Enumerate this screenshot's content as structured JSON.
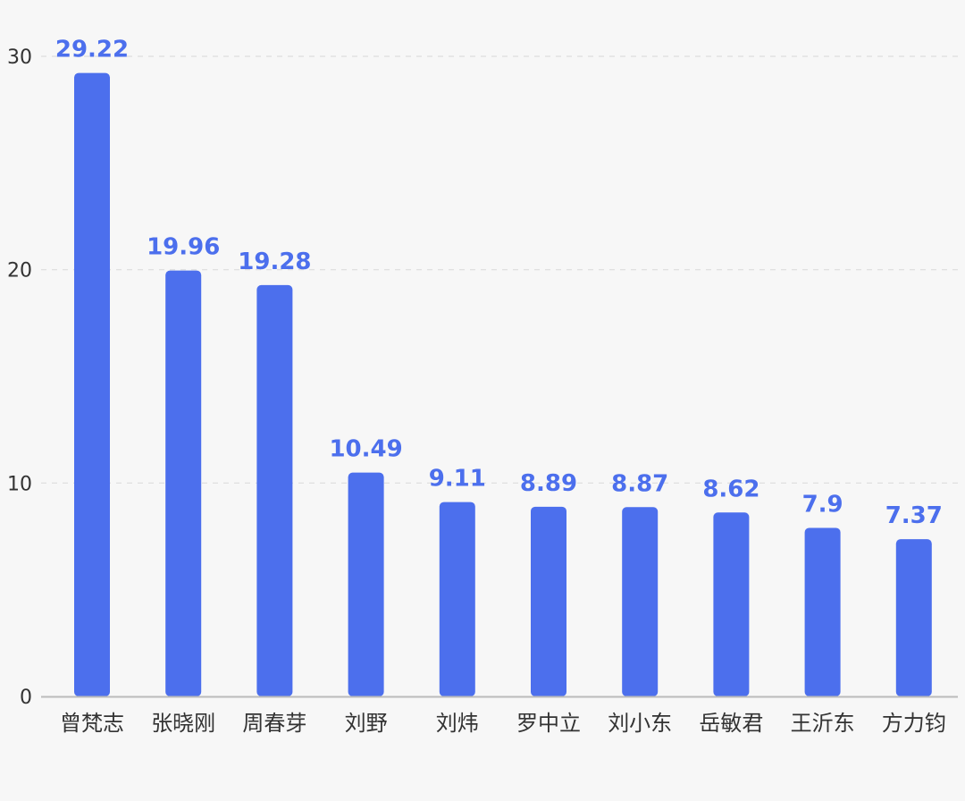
{
  "chart_data": {
    "type": "bar",
    "title": "",
    "xlabel": "",
    "ylabel": "",
    "categories": [
      "曾梵志",
      "张晓刚",
      "周春芽",
      "刘野",
      "刘炜",
      "罗中立",
      "刘小东",
      "岳敏君",
      "王沂东",
      "方力钧"
    ],
    "values": [
      29.22,
      19.96,
      19.28,
      10.49,
      9.11,
      8.89,
      8.87,
      8.62,
      7.9,
      7.37
    ],
    "value_labels": [
      "29.22",
      "19.96",
      "19.28",
      "10.49",
      "9.11",
      "8.89",
      "8.87",
      "8.62",
      "7.9",
      "7.37"
    ],
    "ylim": [
      0,
      30
    ],
    "yticks": [
      "0",
      "10",
      "20",
      "30"
    ],
    "grid": true,
    "legend": "none",
    "colors": {
      "bar": "#4c6fed",
      "value_label": "#4c6fed",
      "grid": "#dddddd",
      "axis": "#bbbbbb",
      "background": "#f7f7f7"
    }
  }
}
